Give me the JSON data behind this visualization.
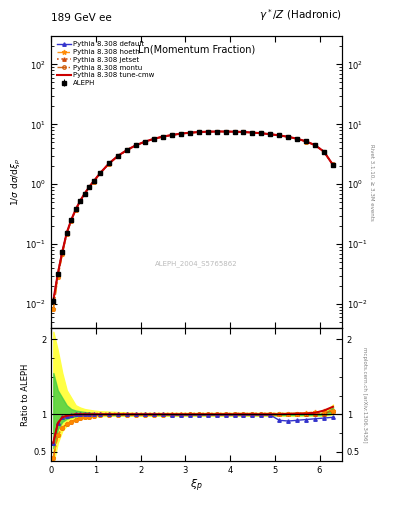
{
  "title_left": "189 GeV ee",
  "title_right": "γ*/Z (Hadronic)",
  "xlabel": "ξ_p",
  "ylabel_main": "1/σ dσ/dξ_p",
  "ylabel_ratio": "Ratio to ALEPH",
  "plot_label": "Ln(Momentum Fraction)",
  "watermark": "ALEPH_2004_S5765862",
  "right_label_top": "Rivet 3.1.10, ≥ 3.3M events",
  "right_label_bottom": "mcplots.cern.ch [arXiv:1306.3436]",
  "xi_data": [
    0.05,
    0.15,
    0.25,
    0.35,
    0.45,
    0.55,
    0.65,
    0.75,
    0.85,
    0.95,
    1.1,
    1.3,
    1.5,
    1.7,
    1.9,
    2.1,
    2.3,
    2.5,
    2.7,
    2.9,
    3.1,
    3.3,
    3.5,
    3.7,
    3.9,
    4.1,
    4.3,
    4.5,
    4.7,
    4.9,
    5.1,
    5.3,
    5.5,
    5.7,
    5.9,
    6.1,
    6.3
  ],
  "aleph_y": [
    0.0115,
    0.032,
    0.075,
    0.155,
    0.255,
    0.38,
    0.53,
    0.7,
    0.9,
    1.12,
    1.55,
    2.25,
    3.0,
    3.75,
    4.5,
    5.15,
    5.75,
    6.25,
    6.65,
    7.0,
    7.25,
    7.45,
    7.55,
    7.6,
    7.6,
    7.55,
    7.45,
    7.3,
    7.1,
    6.85,
    6.55,
    6.2,
    5.75,
    5.2,
    4.5,
    3.5,
    2.1
  ],
  "aleph_err": [
    0.0015,
    0.002,
    0.003,
    0.005,
    0.007,
    0.009,
    0.011,
    0.013,
    0.015,
    0.017,
    0.025,
    0.035,
    0.045,
    0.055,
    0.065,
    0.07,
    0.08,
    0.085,
    0.09,
    0.095,
    0.1,
    0.1,
    0.1,
    0.1,
    0.1,
    0.1,
    0.1,
    0.1,
    0.1,
    0.1,
    0.1,
    0.1,
    0.1,
    0.1,
    0.1,
    0.12,
    0.15
  ],
  "default_y": [
    0.0115,
    0.032,
    0.075,
    0.155,
    0.255,
    0.38,
    0.53,
    0.7,
    0.9,
    1.12,
    1.55,
    2.25,
    3.0,
    3.75,
    4.5,
    5.15,
    5.75,
    6.25,
    6.65,
    7.0,
    7.25,
    7.45,
    7.55,
    7.6,
    7.6,
    7.55,
    7.45,
    7.3,
    7.1,
    6.85,
    6.55,
    6.2,
    5.75,
    5.2,
    4.5,
    3.5,
    2.1
  ],
  "hoeth_y": [
    0.0082,
    0.028,
    0.068,
    0.148,
    0.248,
    0.37,
    0.52,
    0.69,
    0.89,
    1.1,
    1.53,
    2.22,
    2.97,
    3.72,
    4.47,
    5.12,
    5.72,
    6.22,
    6.62,
    6.97,
    7.22,
    7.42,
    7.52,
    7.57,
    7.57,
    7.52,
    7.42,
    7.27,
    7.07,
    6.82,
    6.52,
    6.17,
    5.72,
    5.17,
    4.47,
    3.47,
    2.07
  ],
  "jetset_y": [
    0.0115,
    0.033,
    0.076,
    0.156,
    0.256,
    0.381,
    0.531,
    0.701,
    0.901,
    1.121,
    1.551,
    2.251,
    3.001,
    3.751,
    4.501,
    5.151,
    5.751,
    6.251,
    6.651,
    7.001,
    7.251,
    7.451,
    7.551,
    7.601,
    7.601,
    7.551,
    7.451,
    7.301,
    7.101,
    6.851,
    6.551,
    6.201,
    5.751,
    5.201,
    4.501,
    3.501,
    2.101
  ],
  "montu_y": [
    0.0082,
    0.028,
    0.068,
    0.148,
    0.248,
    0.37,
    0.52,
    0.69,
    0.89,
    1.1,
    1.53,
    2.22,
    2.97,
    3.72,
    4.47,
    5.12,
    5.72,
    6.22,
    6.62,
    6.97,
    7.22,
    7.42,
    7.52,
    7.57,
    7.57,
    7.52,
    7.42,
    7.27,
    7.07,
    6.82,
    6.52,
    6.17,
    5.72,
    5.17,
    4.47,
    3.52,
    2.15
  ],
  "tunecmw_y": [
    0.0115,
    0.032,
    0.075,
    0.155,
    0.255,
    0.38,
    0.53,
    0.7,
    0.9,
    1.12,
    1.55,
    2.25,
    3.0,
    3.75,
    4.5,
    5.15,
    5.75,
    6.25,
    6.65,
    7.0,
    7.25,
    7.45,
    7.55,
    7.6,
    7.6,
    7.55,
    7.45,
    7.3,
    7.1,
    6.85,
    6.55,
    6.2,
    5.75,
    5.2,
    4.5,
    3.5,
    2.1
  ],
  "ratio_default": [
    0.62,
    0.88,
    0.96,
    0.98,
    0.99,
    1.0,
    1.0,
    1.0,
    1.0,
    1.0,
    1.0,
    1.0,
    1.0,
    1.0,
    1.0,
    1.0,
    1.0,
    1.0,
    0.99,
    0.99,
    0.99,
    0.99,
    0.99,
    0.99,
    0.99,
    0.99,
    0.99,
    0.99,
    0.99,
    0.99,
    0.92,
    0.91,
    0.92,
    0.93,
    0.94,
    0.95,
    0.96
  ],
  "ratio_hoeth": [
    0.42,
    0.72,
    0.82,
    0.87,
    0.9,
    0.93,
    0.95,
    0.96,
    0.97,
    0.98,
    0.99,
    0.99,
    0.99,
    0.99,
    0.99,
    0.99,
    0.99,
    0.99,
    0.99,
    0.99,
    0.99,
    0.99,
    0.99,
    0.99,
    0.99,
    0.99,
    0.99,
    0.99,
    0.99,
    0.99,
    1.0,
    1.0,
    1.01,
    1.02,
    1.03,
    1.04,
    1.05
  ],
  "ratio_jetset": [
    0.62,
    0.88,
    0.96,
    0.98,
    0.99,
    1.0,
    1.005,
    1.01,
    1.01,
    1.01,
    1.01,
    1.01,
    1.01,
    1.01,
    1.01,
    1.01,
    1.01,
    1.01,
    1.01,
    1.01,
    1.01,
    1.01,
    1.01,
    1.01,
    1.01,
    1.01,
    1.01,
    1.01,
    1.01,
    1.01,
    1.01,
    1.01,
    1.01,
    1.01,
    1.01,
    1.01,
    1.05
  ],
  "ratio_montu": [
    0.42,
    0.72,
    0.82,
    0.87,
    0.9,
    0.93,
    0.95,
    0.96,
    0.97,
    0.98,
    0.99,
    0.99,
    0.99,
    0.99,
    0.99,
    0.99,
    0.99,
    0.99,
    0.99,
    0.99,
    1.0,
    1.0,
    1.0,
    1.0,
    1.005,
    1.01,
    1.01,
    1.01,
    1.01,
    1.01,
    1.01,
    1.01,
    1.01,
    1.01,
    1.01,
    1.01,
    1.05
  ],
  "ratio_tunecmw": [
    0.62,
    0.88,
    0.96,
    0.98,
    0.99,
    1.0,
    1.0,
    1.0,
    1.0,
    1.0,
    1.0,
    1.0,
    1.0,
    1.0,
    1.0,
    1.0,
    1.0,
    1.0,
    1.0,
    1.0,
    1.0,
    1.0,
    1.0,
    1.0,
    1.0,
    1.0,
    1.0,
    1.0,
    1.0,
    1.0,
    1.0,
    1.005,
    1.01,
    1.01,
    1.02,
    1.05,
    1.1
  ],
  "band_yellow_lo": [
    0.35,
    0.62,
    0.78,
    0.85,
    0.89,
    0.92,
    0.94,
    0.95,
    0.96,
    0.97,
    0.975,
    0.98,
    0.98,
    0.98,
    0.98,
    0.98,
    0.98,
    0.98,
    0.98,
    0.98,
    0.98,
    0.98,
    0.98,
    0.98,
    0.98,
    0.98,
    0.98,
    0.98,
    0.98,
    0.98,
    0.98,
    0.98,
    0.98,
    0.98,
    0.98,
    0.98,
    1.0
  ],
  "band_yellow_hi": [
    2.1,
    1.85,
    1.55,
    1.32,
    1.22,
    1.12,
    1.09,
    1.07,
    1.06,
    1.05,
    1.04,
    1.035,
    1.03,
    1.025,
    1.02,
    1.02,
    1.02,
    1.02,
    1.02,
    1.02,
    1.02,
    1.02,
    1.02,
    1.02,
    1.02,
    1.02,
    1.02,
    1.02,
    1.02,
    1.02,
    1.02,
    1.02,
    1.02,
    1.02,
    1.02,
    1.02,
    1.13
  ],
  "band_green_lo": [
    0.55,
    0.8,
    0.9,
    0.94,
    0.96,
    0.97,
    0.975,
    0.98,
    0.985,
    0.99,
    0.99,
    0.99,
    0.99,
    0.99,
    0.99,
    0.99,
    0.99,
    0.99,
    0.99,
    0.99,
    0.99,
    0.99,
    0.99,
    0.99,
    0.99,
    0.99,
    0.99,
    0.99,
    0.99,
    0.99,
    0.99,
    0.99,
    0.99,
    0.99,
    0.99,
    0.99,
    1.01
  ],
  "band_green_hi": [
    1.55,
    1.32,
    1.22,
    1.12,
    1.07,
    1.05,
    1.04,
    1.03,
    1.025,
    1.015,
    1.01,
    1.01,
    1.01,
    1.01,
    1.01,
    1.01,
    1.01,
    1.01,
    1.01,
    1.01,
    1.01,
    1.01,
    1.01,
    1.01,
    1.01,
    1.01,
    1.01,
    1.01,
    1.01,
    1.01,
    1.01,
    1.01,
    1.01,
    1.01,
    1.01,
    1.01,
    1.09
  ],
  "color_default": "#3333cc",
  "color_hoeth": "#ff8800",
  "color_jetset": "#cc4400",
  "color_montu": "#cc5500",
  "color_tunecmw": "#cc0000",
  "color_aleph": "#000000",
  "color_band_yellow": "#ffff44",
  "color_band_green": "#44cc44",
  "xlim": [
    0,
    6.5
  ],
  "ylim_main": [
    0.004,
    300
  ],
  "ylim_ratio": [
    0.38,
    2.15
  ]
}
